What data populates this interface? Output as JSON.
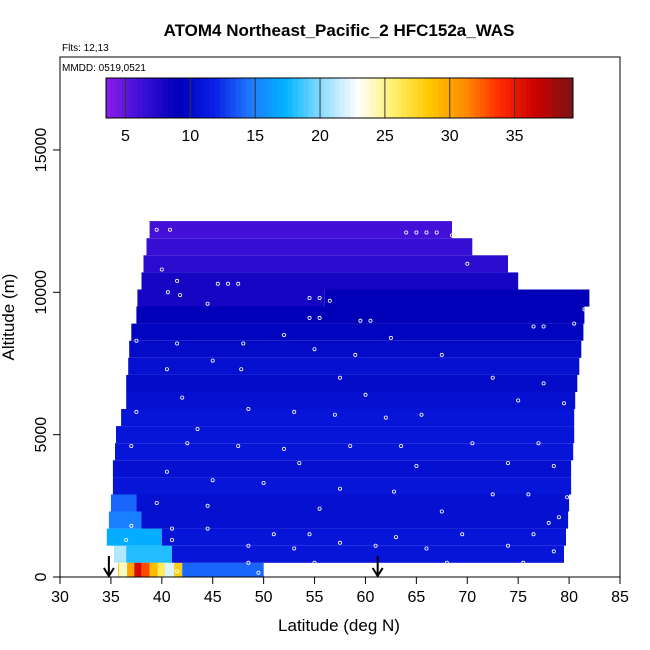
{
  "chart_data": {
    "type": "heatmap",
    "title": "ATOM4 Northeast_Pacific_2 HFC152a_WAS",
    "flights_label": "Flts: 12,13",
    "dates_label": "MMDD: 0519,0521",
    "xlabel": "Latitude (deg N)",
    "ylabel": "Altitude (m)",
    "xlim": [
      30,
      85
    ],
    "ylim": [
      0,
      17000
    ],
    "x_ticks": [
      30,
      35,
      40,
      45,
      50,
      55,
      60,
      65,
      70,
      75,
      80,
      85
    ],
    "y_ticks": [
      0,
      5000,
      10000,
      15000
    ],
    "grid": false,
    "colorbar": {
      "position": "top",
      "range": [
        3.5,
        39.5
      ],
      "ticks": [
        5,
        10,
        15,
        20,
        25,
        30,
        35
      ],
      "colors": [
        "#8c1ee8",
        "#3b0fd6",
        "#0000b8",
        "#0a1ee6",
        "#1e78ff",
        "#00b4ff",
        "#8cdcff",
        "#ffffff",
        "#fff06e",
        "#ffc800",
        "#ff8c00",
        "#ff2800",
        "#c80000",
        "#7a1414"
      ]
    },
    "field_rows": [
      {
        "alt": 200,
        "lat_range": [
          35.7,
          42
        ],
        "value": 28
      },
      {
        "alt": 200,
        "lat_range": [
          42,
          50
        ],
        "value": 14
      },
      {
        "alt": 800,
        "lat_range": [
          35.3,
          36.5
        ],
        "value": 21
      },
      {
        "alt": 800,
        "lat_range": [
          36.5,
          41
        ],
        "value": 18
      },
      {
        "alt": 800,
        "lat_range": [
          41,
          79.5
        ],
        "value": 11
      },
      {
        "alt": 1400,
        "lat_range": [
          34.6,
          40
        ],
        "value": 17
      },
      {
        "alt": 1400,
        "lat_range": [
          40,
          79.7
        ],
        "value": 11
      },
      {
        "alt": 2000,
        "lat_range": [
          34.8,
          38
        ],
        "value": 15
      },
      {
        "alt": 2000,
        "lat_range": [
          38,
          79.9
        ],
        "value": 10.5
      },
      {
        "alt": 2600,
        "lat_range": [
          35,
          37.5
        ],
        "value": 14
      },
      {
        "alt": 2600,
        "lat_range": [
          37.5,
          80
        ],
        "value": 10.5
      },
      {
        "alt": 3200,
        "lat_range": [
          35.2,
          80.2
        ],
        "value": 11
      },
      {
        "alt": 3800,
        "lat_range": [
          35.2,
          80.2
        ],
        "value": 10.5
      },
      {
        "alt": 4400,
        "lat_range": [
          35.4,
          80.4
        ],
        "value": 11
      },
      {
        "alt": 5000,
        "lat_range": [
          35.5,
          80.5
        ],
        "value": 11
      },
      {
        "alt": 5600,
        "lat_range": [
          36,
          80.5
        ],
        "value": 11
      },
      {
        "alt": 6200,
        "lat_range": [
          36.5,
          80.6
        ],
        "value": 10.5
      },
      {
        "alt": 6800,
        "lat_range": [
          36.5,
          80.8
        ],
        "value": 10
      },
      {
        "alt": 7400,
        "lat_range": [
          36.7,
          81
        ],
        "value": 10.5
      },
      {
        "alt": 8000,
        "lat_range": [
          36.8,
          81.2
        ],
        "value": 10
      },
      {
        "alt": 8600,
        "lat_range": [
          37,
          81.4
        ],
        "value": 9.5
      },
      {
        "alt": 9200,
        "lat_range": [
          37.5,
          81.5
        ],
        "value": 9
      },
      {
        "alt": 9800,
        "lat_range": [
          37.6,
          56
        ],
        "value": 8
      },
      {
        "alt": 9800,
        "lat_range": [
          56,
          82
        ],
        "value": 9
      },
      {
        "alt": 10400,
        "lat_range": [
          38,
          75
        ],
        "value": 8
      },
      {
        "alt": 11000,
        "lat_range": [
          38.2,
          74
        ],
        "value": 7
      },
      {
        "alt": 11600,
        "lat_range": [
          38.5,
          70.5
        ],
        "value": 6.5
      },
      {
        "alt": 12200,
        "lat_range": [
          38.8,
          68.5
        ],
        "value": 6
      }
    ],
    "samples": [
      [
        38.5,
        12200
      ],
      [
        39.5,
        12200
      ],
      [
        40.8,
        12200
      ],
      [
        64,
        12100
      ],
      [
        65,
        12100
      ],
      [
        66,
        12100
      ],
      [
        67,
        12100
      ],
      [
        68.5,
        12000
      ],
      [
        70,
        11000
      ],
      [
        40,
        10800
      ],
      [
        41.5,
        10400
      ],
      [
        45.5,
        10300
      ],
      [
        46.5,
        10300
      ],
      [
        47.5,
        10300
      ],
      [
        40.6,
        10000
      ],
      [
        41.8,
        9900
      ],
      [
        44.5,
        9600
      ],
      [
        54.5,
        9800
      ],
      [
        55.5,
        9800
      ],
      [
        56.5,
        9700
      ],
      [
        59.5,
        9000
      ],
      [
        60.5,
        9000
      ],
      [
        54.5,
        9100
      ],
      [
        55.5,
        9100
      ],
      [
        76.5,
        8800
      ],
      [
        77.5,
        8800
      ],
      [
        80.5,
        8900
      ],
      [
        81.5,
        9400
      ],
      [
        37.5,
        8300
      ],
      [
        41.5,
        8200
      ],
      [
        48,
        8200
      ],
      [
        52,
        8500
      ],
      [
        55,
        8000
      ],
      [
        62.5,
        8400
      ],
      [
        59,
        7800
      ],
      [
        67.5,
        7800
      ],
      [
        40.5,
        7300
      ],
      [
        45,
        7600
      ],
      [
        47.8,
        7300
      ],
      [
        57.5,
        7000
      ],
      [
        72.5,
        7000
      ],
      [
        77.5,
        6800
      ],
      [
        42,
        6300
      ],
      [
        60,
        6400
      ],
      [
        75,
        6200
      ],
      [
        79.5,
        6100
      ],
      [
        37.5,
        5800
      ],
      [
        43.5,
        5200
      ],
      [
        48.5,
        5900
      ],
      [
        53,
        5800
      ],
      [
        57,
        5700
      ],
      [
        62,
        5600
      ],
      [
        65.5,
        5700
      ],
      [
        35,
        4800
      ],
      [
        37,
        4600
      ],
      [
        42.5,
        4700
      ],
      [
        47.5,
        4600
      ],
      [
        52,
        4500
      ],
      [
        58.5,
        4600
      ],
      [
        63.5,
        4600
      ],
      [
        70.5,
        4700
      ],
      [
        77,
        4700
      ],
      [
        53.5,
        4000
      ],
      [
        65,
        3900
      ],
      [
        74,
        4000
      ],
      [
        78.5,
        3900
      ],
      [
        40.5,
        3700
      ],
      [
        45,
        3400
      ],
      [
        50,
        3300
      ],
      [
        57.5,
        3100
      ],
      [
        62.8,
        3000
      ],
      [
        72.5,
        2900
      ],
      [
        76,
        2900
      ],
      [
        79.8,
        2800
      ],
      [
        39.5,
        2600
      ],
      [
        44.5,
        2500
      ],
      [
        55.5,
        2400
      ],
      [
        67.5,
        2300
      ],
      [
        79,
        2100
      ],
      [
        37,
        1800
      ],
      [
        41,
        1700
      ],
      [
        44.5,
        1700
      ],
      [
        51,
        1500
      ],
      [
        54.5,
        1500
      ],
      [
        63,
        1400
      ],
      [
        69.5,
        1500
      ],
      [
        76.5,
        1500
      ],
      [
        78,
        1900
      ],
      [
        36.5,
        1300
      ],
      [
        41,
        1300
      ],
      [
        48.5,
        1100
      ],
      [
        53,
        1000
      ],
      [
        57.5,
        1200
      ],
      [
        61,
        1100
      ],
      [
        66,
        1000
      ],
      [
        74,
        1100
      ],
      [
        78.5,
        900
      ],
      [
        48.5,
        500
      ],
      [
        55,
        500
      ],
      [
        60,
        400
      ],
      [
        68,
        500
      ],
      [
        75.5,
        500
      ],
      [
        80,
        300
      ],
      [
        41.5,
        200
      ],
      [
        49.5,
        150
      ],
      [
        53.5,
        150
      ],
      [
        57.5,
        150
      ],
      [
        73.5,
        150
      ],
      [
        79,
        150
      ]
    ],
    "arrows": [
      34.8,
      61.2
    ]
  }
}
